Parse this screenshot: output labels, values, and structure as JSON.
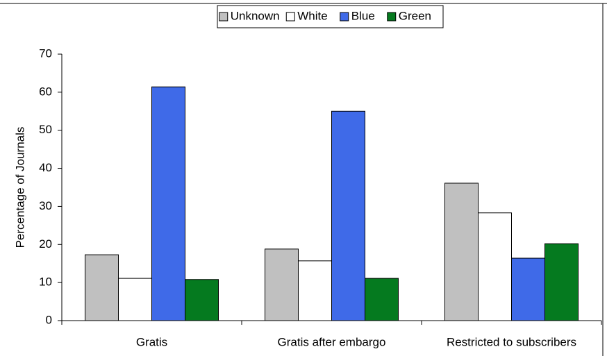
{
  "chart_data": {
    "type": "bar",
    "categories": [
      "Gratis",
      "Gratis after embargo",
      "Restricted to subscribers"
    ],
    "series": [
      {
        "name": "Unknown",
        "color": "#c0c0c0",
        "values": [
          17.3,
          18.8,
          36.1
        ]
      },
      {
        "name": "White",
        "color": "#ffffff",
        "values": [
          11.1,
          15.7,
          28.3
        ]
      },
      {
        "name": "Blue",
        "color": "#3f6ae8",
        "values": [
          61.4,
          55.0,
          16.4
        ]
      },
      {
        "name": "Green",
        "color": "#057a1f",
        "values": [
          10.8,
          11.1,
          20.2
        ]
      }
    ],
    "ylabel": "Percentage of Journals",
    "ylim": [
      0,
      70
    ],
    "yticks": [
      0,
      10,
      20,
      30,
      40,
      50,
      60,
      70
    ],
    "legend": "top"
  }
}
